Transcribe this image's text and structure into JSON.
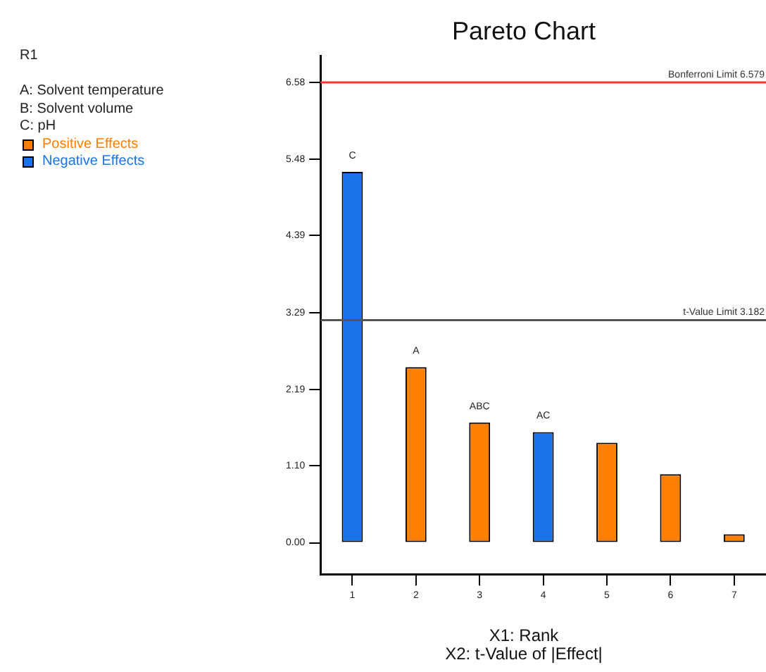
{
  "chart_data": {
    "type": "bar",
    "title": "Pareto Chart",
    "xlabel": "X1: Rank\nX2: t-Value of |Effect|",
    "categories": [
      "1",
      "2",
      "3",
      "4",
      "5",
      "6",
      "7"
    ],
    "series": [
      {
        "name": "Positive Effects",
        "color": "#ff7f00",
        "values": [
          null,
          2.51,
          1.72,
          null,
          1.43,
          0.98,
          0.12
        ]
      },
      {
        "name": "Negative Effects",
        "color": "#1a73e8",
        "values": [
          5.3,
          null,
          null,
          1.58,
          null,
          null,
          null
        ]
      }
    ],
    "stacked": true,
    "ylim": [
      -0.45,
      6.96
    ],
    "yticks": [
      {
        "value": 0,
        "label": "0.00"
      },
      {
        "value": 1.1,
        "label": "1.10"
      },
      {
        "value": 2.19,
        "label": "2.19"
      },
      {
        "value": 3.29,
        "label": "3.29"
      },
      {
        "value": 4.39,
        "label": "4.39"
      },
      {
        "value": 5.48,
        "label": "5.48"
      },
      {
        "value": 6.58,
        "label": "6.58"
      }
    ],
    "ref_lines": [
      {
        "axis": "y",
        "value": 6.579,
        "label": "Bonferroni Limit 6.579",
        "color": "#ff3333"
      },
      {
        "axis": "y",
        "value": 3.182,
        "label": "t-Value Limit 3.182",
        "color": "#555555"
      }
    ],
    "annotations": [
      "R1",
      "A: Solvent temperature",
      "B: Solvent volume",
      "C: pH",
      {
        "text": "C",
        "x": "1",
        "y": 5.3
      },
      {
        "text": "A",
        "x": "2",
        "y": 2.51
      },
      {
        "text": "ABC",
        "x": "3",
        "y": 1.72
      },
      {
        "text": "AC",
        "x": "4",
        "y": 1.58
      }
    ],
    "grid": false,
    "legend": "top left"
  }
}
